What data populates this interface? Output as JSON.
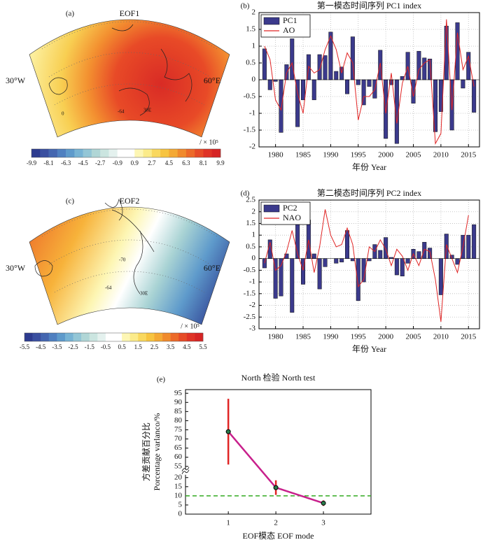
{
  "chart_data": [
    {
      "type": "map",
      "panel": "(a)",
      "title": "EOF1",
      "lon_labels": [
        "30°W",
        "60°E"
      ],
      "map_labels": [
        "0",
        "-64",
        "30E"
      ],
      "unit": "/ × 10⁵",
      "cbar_lim": [
        -9.9,
        9.9
      ],
      "cbar_ticks": [
        -9.9,
        -8.1,
        -6.3,
        -4.5,
        -2.7,
        -0.9,
        0.9,
        2.7,
        4.5,
        6.3,
        8.1,
        9.9
      ],
      "colors": [
        "#2d3b8f",
        "#3a4fa0",
        "#4466b0",
        "#4f80c0",
        "#5e9acb",
        "#77b3d4",
        "#93c6d6",
        "#b0d6d6",
        "#cbe5e0",
        "#e4f1ee",
        "#ffffff",
        "#ffffff",
        "#fdf6b4",
        "#fbeb8a",
        "#f9d85e",
        "#f7c440",
        "#f4a934",
        "#f08a2c",
        "#ec6a29",
        "#e64b27",
        "#df3326",
        "#d62424"
      ]
    },
    {
      "type": "bar",
      "panel": "(b)",
      "title": "第一模态时间序列 PC1 index",
      "x_label": "年份 Year",
      "x": [
        1978,
        1979,
        1980,
        1981,
        1982,
        1983,
        1984,
        1985,
        1986,
        1987,
        1988,
        1989,
        1990,
        1991,
        1992,
        1993,
        1994,
        1995,
        1996,
        1997,
        1998,
        1999,
        2000,
        2001,
        2002,
        2003,
        2004,
        2005,
        2006,
        2007,
        2008,
        2009,
        2010,
        2011,
        2012,
        2013,
        2014,
        2015,
        2016
      ],
      "series": [
        {
          "name": "PC1",
          "style": "bar",
          "color": "#3b3a8c",
          "values": [
            0.92,
            -0.3,
            -0.05,
            -1.57,
            0.45,
            1.22,
            -1.4,
            -0.6,
            0.75,
            -0.6,
            0.75,
            0.72,
            1.42,
            0.25,
            0.38,
            -0.42,
            1.28,
            -0.15,
            -0.75,
            -0.2,
            -0.55,
            0.88,
            -1.75,
            -0.15,
            -1.9,
            0.1,
            0.82,
            -0.7,
            0.85,
            0.65,
            0.62,
            -1.55,
            -0.95,
            1.6,
            -1.5,
            1.7,
            -0.25,
            0.82,
            -0.97
          ]
        },
        {
          "name": "AO",
          "style": "line",
          "color": "#e02424",
          "values": [
            1.0,
            0.6,
            -0.6,
            -0.9,
            0.2,
            0.5,
            -0.4,
            -1.0,
            0.4,
            0.2,
            0.3,
            0.9,
            1.3,
            0.9,
            0.2,
            0.8,
            0.5,
            -1.2,
            -0.5,
            -0.5,
            -0.3,
            0.5,
            -1.0,
            0.2,
            -1.3,
            -0.1,
            0.4,
            -0.5,
            0.3,
            0.5,
            0.6,
            -1.9,
            -1.6,
            1.8,
            -0.9,
            1.4,
            0.3,
            0.7,
            -0.2
          ]
        }
      ],
      "xlim": [
        1977,
        2017
      ],
      "xticks": [
        1980,
        1985,
        1990,
        1995,
        2000,
        2005,
        2010,
        2015
      ],
      "ylim": [
        -2,
        2
      ],
      "yticks": [
        -2,
        -1.5,
        -1,
        -0.5,
        0,
        0.5,
        1,
        1.5,
        2
      ],
      "grid": true,
      "legend": "upper left"
    },
    {
      "type": "map",
      "panel": "(c)",
      "title": "EOF2",
      "lon_labels": [
        "30°W",
        "60°E"
      ],
      "map_labels": [
        "-70",
        "-64",
        "30E"
      ],
      "unit": "/ × 10⁵",
      "cbar_lim": [
        -5.5,
        5.5
      ],
      "cbar_ticks": [
        -5.5,
        -4.5,
        -3.5,
        -2.5,
        -1.5,
        -0.5,
        0.5,
        1.5,
        2.5,
        3.5,
        4.5,
        5.5
      ],
      "colors": [
        "#2d3b8f",
        "#3a4fa0",
        "#4466b0",
        "#4f80c0",
        "#5e9acb",
        "#77b3d4",
        "#93c6d6",
        "#b0d6d6",
        "#cbe5e0",
        "#e4f1ee",
        "#ffffff",
        "#ffffff",
        "#fdf6b4",
        "#fbeb8a",
        "#f9d85e",
        "#f7c440",
        "#f4a934",
        "#f08a2c",
        "#ec6a29",
        "#e64b27",
        "#df3326",
        "#d62424"
      ]
    },
    {
      "type": "bar",
      "panel": "(d)",
      "title": "第二模态时间序列 PC2 index",
      "x_label": "年份 Year",
      "x": [
        1978,
        1979,
        1980,
        1981,
        1982,
        1983,
        1984,
        1985,
        1986,
        1987,
        1988,
        1989,
        1990,
        1991,
        1992,
        1993,
        1994,
        1995,
        1996,
        1997,
        1998,
        1999,
        2000,
        2001,
        2002,
        2003,
        2004,
        2005,
        2006,
        2007,
        2008,
        2009,
        2010,
        2011,
        2012,
        2013,
        2014,
        2015,
        2016
      ],
      "series": [
        {
          "name": "PC2",
          "style": "bar",
          "color": "#3b3a8c",
          "values": [
            -0.4,
            0.8,
            -1.7,
            -1.6,
            0.2,
            -2.3,
            2.0,
            -1.1,
            1.65,
            0.2,
            -1.3,
            -0.35,
            0.0,
            -0.2,
            -0.15,
            1.2,
            -0.1,
            -1.8,
            -1.0,
            -0.1,
            0.6,
            0.35,
            0.9,
            0.05,
            -0.7,
            -0.75,
            -0.2,
            0.4,
            0.3,
            0.7,
            0.45,
            0.0,
            -1.55,
            1.05,
            0.15,
            -0.25,
            1.0,
            1.0,
            1.45
          ]
        },
        {
          "name": "NAO",
          "style": "line",
          "color": "#e02424",
          "values": [
            -0.2,
            0.7,
            -0.5,
            -0.3,
            0.3,
            1.2,
            0.2,
            -0.5,
            0.8,
            -0.6,
            0.5,
            2.1,
            1.0,
            0.5,
            0.6,
            1.3,
            0.6,
            -1.2,
            -0.9,
            0.5,
            0.3,
            0.8,
            0.4,
            -0.3,
            0.4,
            0.1,
            -0.5,
            0.2,
            -0.3,
            0.4,
            0.3,
            -0.9,
            -2.7,
            0.6,
            0.0,
            -0.6,
            0.5,
            1.85,
            null
          ]
        }
      ],
      "xlim": [
        1977,
        2017
      ],
      "xticks": [
        1980,
        1985,
        1990,
        1995,
        2000,
        2005,
        2010,
        2015
      ],
      "ylim": [
        -3,
        2.5
      ],
      "yticks": [
        -3,
        -2.5,
        -2,
        -1.5,
        -1,
        -0.5,
        0,
        0.5,
        1,
        1.5,
        2,
        2.5
      ],
      "grid": true,
      "legend": "upper left"
    },
    {
      "type": "errorbar",
      "panel": "(e)",
      "title": "North 检验 North test",
      "x_label": "EOF模态 EOF mode",
      "y_label": [
        "方差贡献百分比",
        "Porcentage varlanco/%"
      ],
      "x": [
        1,
        2,
        3
      ],
      "values": [
        74,
        14.5,
        6
      ],
      "errors": [
        18,
        4,
        1.5
      ],
      "line_color": "#c8208c",
      "error_color": "#e02424",
      "marker_color": "#2a7a4a",
      "reference_line": {
        "value": 10,
        "color": "#33aa22"
      },
      "xlim": [
        0.1,
        4
      ],
      "xticks": [
        1,
        2,
        3
      ],
      "ylim": [
        0,
        97
      ],
      "ybreak": [
        20,
        55
      ],
      "yticks": [
        0,
        5,
        10,
        15,
        20,
        55,
        60,
        65,
        70,
        75,
        80,
        85,
        90,
        95
      ]
    }
  ]
}
